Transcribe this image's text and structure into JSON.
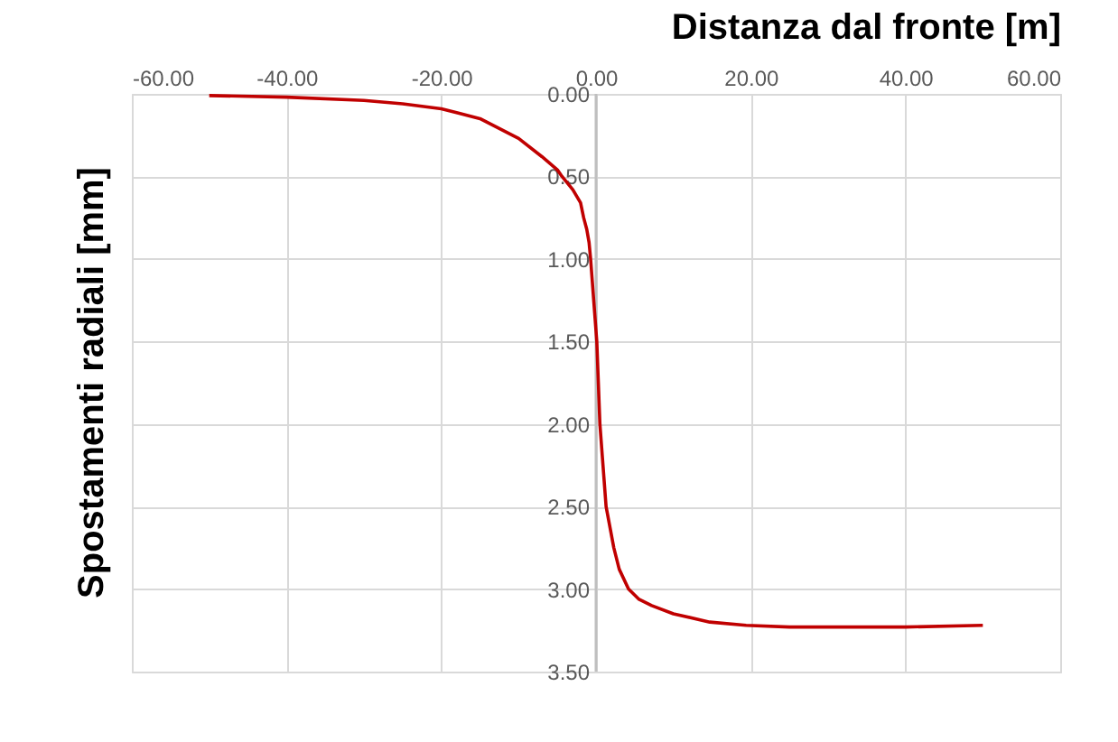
{
  "chart_data": {
    "type": "line",
    "xlabel": "Distanza dal fronte [m]",
    "ylabel": "Spostamenti radiali [mm]",
    "series": [
      {
        "color": "#c00000",
        "x": [
          -50,
          -40,
          -30,
          -25,
          -20,
          -15,
          -10,
          -7,
          -5,
          -4.4,
          -3,
          -2,
          -1.6,
          -1.2,
          -0.9,
          -0.7,
          -0.3,
          0.1,
          0.5,
          1.3,
          2.3,
          3,
          4.2,
          5.5,
          7.2,
          10,
          14.7,
          19.4,
          25,
          30,
          40,
          50
        ],
        "values": [
          0.01,
          0.02,
          0.04,
          0.06,
          0.09,
          0.15,
          0.27,
          0.38,
          0.46,
          0.5,
          0.58,
          0.66,
          0.75,
          0.82,
          0.9,
          1.0,
          1.25,
          1.5,
          2.0,
          2.5,
          2.75,
          2.88,
          3.0,
          3.06,
          3.1,
          3.15,
          3.2,
          3.22,
          3.23,
          3.23,
          3.23,
          3.22
        ]
      }
    ],
    "xlim": [
      -60,
      60
    ],
    "ylim": [
      3.5,
      0
    ],
    "xticks": [
      {
        "value": -60,
        "label": "-60.00"
      },
      {
        "value": -40,
        "label": "-40.00"
      },
      {
        "value": -20,
        "label": "-20.00"
      },
      {
        "value": 0,
        "label": "0.00"
      },
      {
        "value": 20,
        "label": "20.00"
      },
      {
        "value": 40,
        "label": "40.00"
      },
      {
        "value": 60,
        "label": "60.00"
      }
    ],
    "yticks": [
      {
        "value": 0,
        "label": "0.00"
      },
      {
        "value": 0.5,
        "label": "0.50"
      },
      {
        "value": 1,
        "label": "1.00"
      },
      {
        "value": 1.5,
        "label": "1.50"
      },
      {
        "value": 2,
        "label": "2.00"
      },
      {
        "value": 2.5,
        "label": "2.50"
      },
      {
        "value": 3,
        "label": "3.00"
      },
      {
        "value": 3.5,
        "label": "3.50"
      }
    ],
    "grid": true,
    "line_style": "solid",
    "marker": "none"
  }
}
